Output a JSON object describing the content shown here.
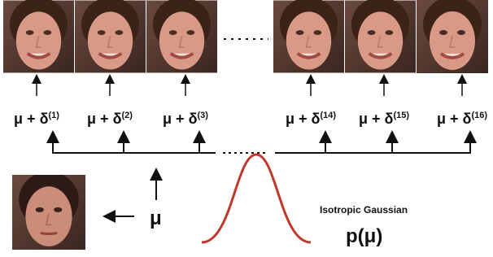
{
  "labels": [
    {
      "base": "μ + δ",
      "sup": "(1)"
    },
    {
      "base": "μ + δ",
      "sup": "(2)"
    },
    {
      "base": "μ + δ",
      "sup": "(3)"
    },
    {
      "base": "μ + δ",
      "sup": "(14)"
    },
    {
      "base": "μ + δ",
      "sup": "(15)"
    },
    {
      "base": "μ + δ",
      "sup": "(16)"
    }
  ],
  "mean": "μ",
  "prior": {
    "title": "Isotropic Gaussian",
    "formula": "p(μ)"
  }
}
